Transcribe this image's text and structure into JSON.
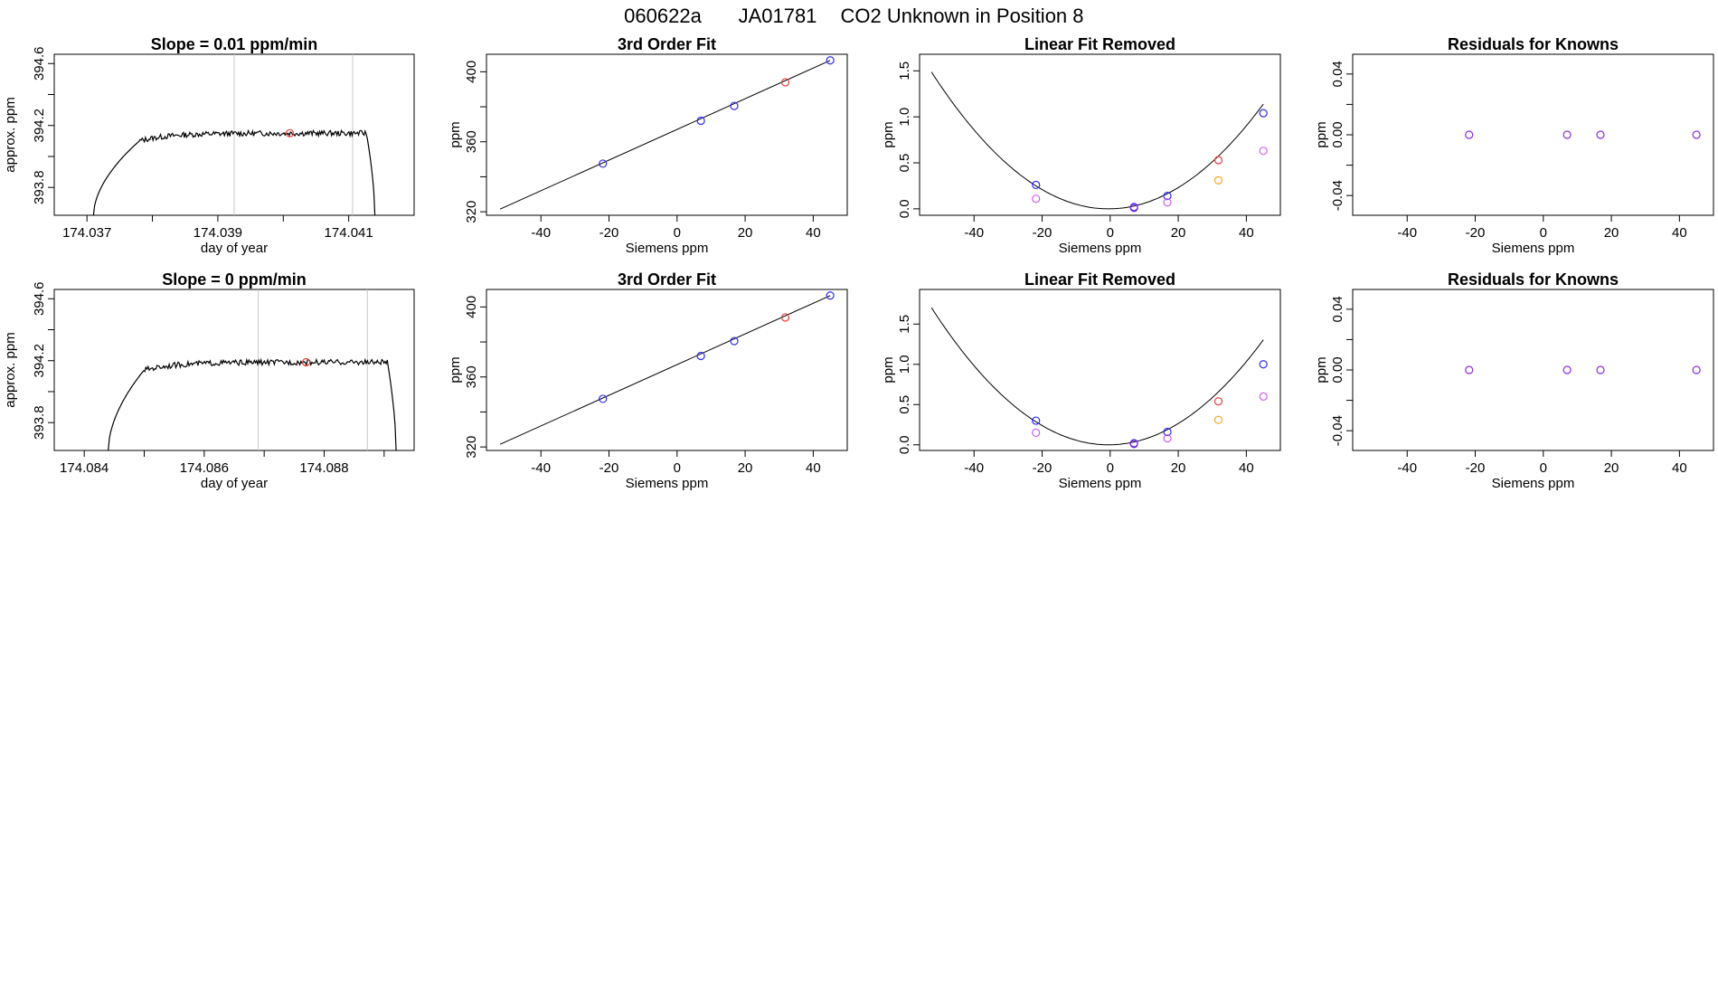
{
  "figure": {
    "title_parts": [
      "060622a",
      "JA01781",
      "CO2 Unknown in Position  8"
    ]
  },
  "colors": {
    "line": "#000000",
    "blue": "#2b2bf0",
    "red": "#e83a3a",
    "magenta": "#d65cf0",
    "orange": "#f5a623",
    "purple": "#8a2be2",
    "gray_vline": "#c8c8c8"
  },
  "chart_data": [
    {
      "id": "r1c1",
      "type": "line",
      "title": "Slope =  0.01  ppm/min",
      "xlabel": "day of year",
      "ylabel": "approx. ppm",
      "xlim": [
        174.0365,
        174.042
      ],
      "ylim": [
        393.62,
        394.66
      ],
      "xticks": [
        174.037,
        174.038,
        174.039,
        174.04,
        174.041
      ],
      "xticklabels": [
        "174.037",
        "",
        "174.039",
        "",
        "174.041"
      ],
      "yticks": [
        393.8,
        394.0,
        394.2,
        394.4,
        394.6
      ],
      "yticklabels": [
        "393.8",
        "",
        "394.2",
        "",
        "394.6"
      ],
      "x_start": 174.0371,
      "x_end": 174.0414,
      "plateau": 394.15,
      "ramp_x": 174.0378,
      "vlines": [
        174.03925,
        174.04106
      ],
      "marker": {
        "x": 174.0401,
        "y": 394.15,
        "color": "red"
      }
    },
    {
      "id": "r1c2",
      "type": "scatter",
      "title": "3rd Order Fit",
      "xlabel": "Siemens ppm",
      "ylabel": "ppm",
      "xlim": [
        -56,
        50
      ],
      "ylim": [
        318,
        410
      ],
      "xticks": [
        -40,
        -20,
        0,
        20,
        40
      ],
      "xticklabels": [
        "-40",
        "-20",
        "0",
        "20",
        "40"
      ],
      "yticks": [
        320,
        340,
        360,
        380,
        400
      ],
      "yticklabels": [
        "320",
        "",
        "360",
        "",
        "400"
      ],
      "fit_line": [
        [
          -52,
          321.5
        ],
        [
          45,
          406.5
        ]
      ],
      "points": [
        {
          "x": -21.8,
          "y": 347.5,
          "color": "blue"
        },
        {
          "x": 7.0,
          "y": 372.0,
          "color": "blue"
        },
        {
          "x": 16.8,
          "y": 380.5,
          "color": "blue"
        },
        {
          "x": 31.8,
          "y": 394.0,
          "color": "red"
        },
        {
          "x": 45.0,
          "y": 406.5,
          "color": "blue"
        }
      ]
    },
    {
      "id": "r1c3",
      "type": "scatter",
      "title": "Linear Fit Removed",
      "xlabel": "Siemens ppm",
      "ylabel": "ppm",
      "xlim": [
        -56,
        50
      ],
      "ylim": [
        -0.07,
        1.68
      ],
      "xticks": [
        -40,
        -20,
        0,
        20,
        40
      ],
      "xticklabels": [
        "-40",
        "-20",
        "0",
        "20",
        "40"
      ],
      "yticks": [
        0.0,
        0.5,
        1.0,
        1.5
      ],
      "yticklabels": [
        "0.0",
        "0.5",
        "1.0",
        "1.5"
      ],
      "curve": {
        "x_from": -52.5,
        "x_to": 45,
        "vertex": -0.5,
        "a": 0.00055,
        "b": 0.0
      },
      "points": [
        {
          "x": -21.8,
          "y": 0.26,
          "color": "blue"
        },
        {
          "x": -21.8,
          "y": 0.11,
          "color": "magenta"
        },
        {
          "x": 7.0,
          "y": 0.02,
          "color": "blue"
        },
        {
          "x": 7.0,
          "y": 0.01,
          "color": "purple"
        },
        {
          "x": 16.8,
          "y": 0.14,
          "color": "blue"
        },
        {
          "x": 16.8,
          "y": 0.07,
          "color": "magenta"
        },
        {
          "x": 31.8,
          "y": 0.53,
          "color": "red"
        },
        {
          "x": 31.8,
          "y": 0.31,
          "color": "orange"
        },
        {
          "x": 45.0,
          "y": 1.04,
          "color": "blue"
        },
        {
          "x": 45.0,
          "y": 0.63,
          "color": "magenta"
        }
      ]
    },
    {
      "id": "r1c4",
      "type": "scatter",
      "title": "Residuals for Knowns",
      "xlabel": "Siemens ppm",
      "ylabel": "ppm",
      "xlim": [
        -56,
        50
      ],
      "ylim": [
        -0.053,
        0.053
      ],
      "xticks": [
        -40,
        -20,
        0,
        20,
        40
      ],
      "xticklabels": [
        "-40",
        "-20",
        "0",
        "20",
        "40"
      ],
      "yticks": [
        -0.04,
        -0.02,
        0.0,
        0.02,
        0.04
      ],
      "yticklabels": [
        "-0.04",
        "",
        "0.00",
        "",
        "0.04"
      ],
      "points": [
        {
          "x": -21.8,
          "y": 0.0,
          "color": "purple"
        },
        {
          "x": 7.0,
          "y": 0.0,
          "color": "purple"
        },
        {
          "x": 16.8,
          "y": 0.0,
          "color": "purple"
        },
        {
          "x": 45.0,
          "y": 0.0,
          "color": "purple"
        }
      ]
    },
    {
      "id": "r2c1",
      "type": "line",
      "title": "Slope =  0  ppm/min",
      "xlabel": "day of year",
      "ylabel": "approx. ppm",
      "xlim": [
        174.0835,
        174.0895
      ],
      "ylim": [
        393.62,
        394.66
      ],
      "xticks": [
        174.084,
        174.085,
        174.086,
        174.087,
        174.088,
        174.089
      ],
      "xticklabels": [
        "174.084",
        "",
        "174.086",
        "",
        "174.088",
        ""
      ],
      "yticks": [
        393.8,
        394.0,
        394.2,
        394.4,
        394.6
      ],
      "yticklabels": [
        "393.8",
        "",
        "394.2",
        "",
        "394.6"
      ],
      "x_start": 174.0844,
      "x_end": 174.0892,
      "plateau": 394.19,
      "ramp_x": 174.085,
      "vlines": [
        174.0869,
        174.08872
      ],
      "marker": {
        "x": 174.0877,
        "y": 394.19,
        "color": "red"
      }
    },
    {
      "id": "r2c2",
      "type": "scatter",
      "title": "3rd Order Fit",
      "xlabel": "Siemens ppm",
      "ylabel": "ppm",
      "xlim": [
        -56,
        50
      ],
      "ylim": [
        318,
        410
      ],
      "xticks": [
        -40,
        -20,
        0,
        20,
        40
      ],
      "xticklabels": [
        "-40",
        "-20",
        "0",
        "20",
        "40"
      ],
      "yticks": [
        320,
        340,
        360,
        380,
        400
      ],
      "yticklabels": [
        "320",
        "",
        "360",
        "",
        "400"
      ],
      "fit_line": [
        [
          -52,
          321.5
        ],
        [
          45,
          406.5
        ]
      ],
      "points": [
        {
          "x": -21.8,
          "y": 347.5,
          "color": "blue"
        },
        {
          "x": 7.0,
          "y": 372.0,
          "color": "blue"
        },
        {
          "x": 16.8,
          "y": 380.5,
          "color": "blue"
        },
        {
          "x": 31.8,
          "y": 394.0,
          "color": "red"
        },
        {
          "x": 45.0,
          "y": 406.5,
          "color": "blue"
        }
      ]
    },
    {
      "id": "r2c3",
      "type": "scatter",
      "title": "Linear Fit Removed",
      "xlabel": "Siemens ppm",
      "ylabel": "ppm",
      "xlim": [
        -56,
        50
      ],
      "ylim": [
        -0.07,
        1.93
      ],
      "xticks": [
        -40,
        -20,
        0,
        20,
        40
      ],
      "xticklabels": [
        "-40",
        "-20",
        "0",
        "20",
        "40"
      ],
      "yticks": [
        0.0,
        0.5,
        1.0,
        1.5
      ],
      "yticklabels": [
        "0.0",
        "0.5",
        "1.0",
        "1.5"
      ],
      "curve": {
        "x_from": -52.5,
        "x_to": 45,
        "vertex": -0.5,
        "a": 0.00063,
        "b": 0.0
      },
      "points": [
        {
          "x": -21.8,
          "y": 0.3,
          "color": "blue"
        },
        {
          "x": -21.8,
          "y": 0.15,
          "color": "magenta"
        },
        {
          "x": 7.0,
          "y": 0.02,
          "color": "blue"
        },
        {
          "x": 7.0,
          "y": 0.01,
          "color": "purple"
        },
        {
          "x": 16.8,
          "y": 0.16,
          "color": "blue"
        },
        {
          "x": 16.8,
          "y": 0.08,
          "color": "magenta"
        },
        {
          "x": 31.8,
          "y": 0.54,
          "color": "red"
        },
        {
          "x": 31.8,
          "y": 0.31,
          "color": "orange"
        },
        {
          "x": 45.0,
          "y": 1.0,
          "color": "blue"
        },
        {
          "x": 45.0,
          "y": 0.6,
          "color": "magenta"
        }
      ]
    },
    {
      "id": "r2c4",
      "type": "scatter",
      "title": "Residuals for Knowns",
      "xlabel": "Siemens ppm",
      "ylabel": "ppm",
      "xlim": [
        -56,
        50
      ],
      "ylim": [
        -0.053,
        0.053
      ],
      "xticks": [
        -40,
        -20,
        0,
        20,
        40
      ],
      "xticklabels": [
        "-40",
        "-20",
        "0",
        "20",
        "40"
      ],
      "yticks": [
        -0.04,
        -0.02,
        0.0,
        0.02,
        0.04
      ],
      "yticklabels": [
        "-0.04",
        "",
        "0.00",
        "",
        "0.04"
      ],
      "points": [
        {
          "x": -21.8,
          "y": 0.0,
          "color": "purple"
        },
        {
          "x": 7.0,
          "y": 0.0,
          "color": "purple"
        },
        {
          "x": 16.8,
          "y": 0.0,
          "color": "purple"
        },
        {
          "x": 45.0,
          "y": 0.0,
          "color": "purple"
        }
      ]
    }
  ]
}
